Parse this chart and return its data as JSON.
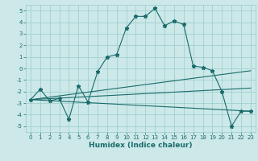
{
  "xlabel": "Humidex (Indice chaleur)",
  "bg_color": "#cce8e8",
  "grid_color": "#99cccc",
  "line_color": "#1a6b6b",
  "xlim": [
    -0.5,
    23.5
  ],
  "ylim": [
    -5.5,
    5.5
  ],
  "xticks": [
    0,
    1,
    2,
    3,
    4,
    5,
    6,
    7,
    8,
    9,
    10,
    11,
    12,
    13,
    14,
    15,
    16,
    17,
    18,
    19,
    20,
    21,
    22,
    23
  ],
  "yticks": [
    -5,
    -4,
    -3,
    -2,
    -1,
    0,
    1,
    2,
    3,
    4,
    5
  ],
  "series1_x": [
    0,
    1,
    2,
    3,
    4,
    5,
    6,
    7,
    8,
    9,
    10,
    11,
    12,
    13,
    14,
    15,
    16,
    17,
    18,
    19,
    20,
    21,
    22,
    23
  ],
  "series1_y": [
    -2.7,
    -1.8,
    -2.8,
    -2.6,
    -4.4,
    -1.5,
    -2.9,
    -0.3,
    1.0,
    1.2,
    3.5,
    4.5,
    4.5,
    5.2,
    3.7,
    4.1,
    3.8,
    0.2,
    0.1,
    -0.2,
    -2.0,
    -5.0,
    -3.7,
    -3.7
  ],
  "series2_x": [
    0,
    23
  ],
  "series2_y": [
    -2.7,
    -3.7
  ],
  "series3_x": [
    0,
    23
  ],
  "series3_y": [
    -2.7,
    -1.7
  ],
  "series4_x": [
    0,
    23
  ],
  "series4_y": [
    -2.7,
    -0.2
  ],
  "tick_fontsize": 5.0,
  "xlabel_fontsize": 6.5
}
